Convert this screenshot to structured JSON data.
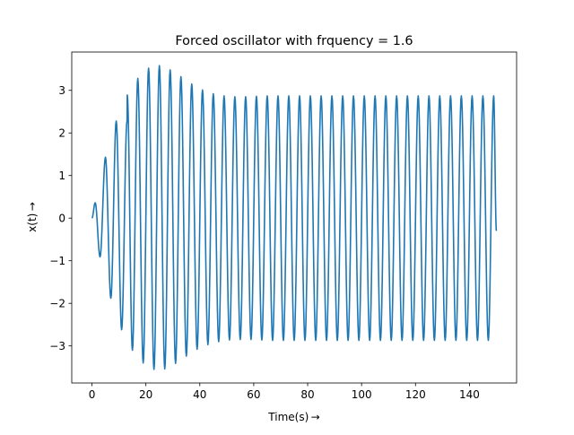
{
  "chart_data": {
    "type": "line",
    "title": "Forced oscillator with frquency = 1.6",
    "xlabel": "Time(s) →",
    "ylabel": "x(t) →",
    "xlim": [
      -7.5,
      157.5
    ],
    "ylim": [
      -3.87,
      3.9
    ],
    "xticks": [
      0,
      20,
      40,
      60,
      80,
      100,
      120,
      140
    ],
    "yticks": [
      -3,
      -2,
      -1,
      0,
      1,
      2,
      3
    ],
    "tick_labels": {
      "x": [
        "0",
        "20",
        "40",
        "60",
        "80",
        "100",
        "120",
        "140"
      ],
      "y": [
        "−3",
        "−2",
        "−1",
        "0",
        "1",
        "2",
        "3"
      ]
    },
    "grid": false,
    "legend": "none",
    "series": [
      {
        "color": "#1f77b4",
        "forcing_frequency": 1.6,
        "peaks": [
          {
            "x": 1.2,
            "y": 0.36
          },
          {
            "x": 5.0,
            "y": 1.43
          },
          {
            "x": 9.0,
            "y": 2.28
          },
          {
            "x": 13.1,
            "y": 2.89
          },
          {
            "x": 17.0,
            "y": 3.28
          },
          {
            "x": 21.0,
            "y": 3.52
          },
          {
            "x": 25.0,
            "y": 3.58
          },
          {
            "x": 29.0,
            "y": 3.48
          },
          {
            "x": 33.0,
            "y": 3.32
          },
          {
            "x": 37.0,
            "y": 3.15
          },
          {
            "x": 41.0,
            "y": 3.01
          },
          {
            "x": 45.0,
            "y": 2.92
          },
          {
            "x": 49.0,
            "y": 2.87
          },
          {
            "x": 53.0,
            "y": 2.85
          },
          {
            "x": 57.0,
            "y": 2.85
          },
          {
            "x": 61.0,
            "y": 2.86
          },
          {
            "x": 65.0,
            "y": 2.87
          },
          {
            "x": 69.0,
            "y": 2.87
          },
          {
            "x": 73.0,
            "y": 2.87
          },
          {
            "x": 77.0,
            "y": 2.87
          },
          {
            "x": 149.0,
            "y": 2.87
          }
        ],
        "troughs": [
          {
            "x": 3.0,
            "y": -0.91
          },
          {
            "x": 7.0,
            "y": -1.88
          },
          {
            "x": 11.0,
            "y": -2.62
          },
          {
            "x": 15.0,
            "y": -3.1
          },
          {
            "x": 19.0,
            "y": -3.4
          },
          {
            "x": 23.0,
            "y": -3.55
          },
          {
            "x": 27.0,
            "y": -3.54
          },
          {
            "x": 31.0,
            "y": -3.41
          },
          {
            "x": 35.0,
            "y": -3.24
          },
          {
            "x": 39.0,
            "y": -3.08
          },
          {
            "x": 43.0,
            "y": -2.97
          },
          {
            "x": 47.0,
            "y": -2.9
          },
          {
            "x": 51.0,
            "y": -2.86
          },
          {
            "x": 55.0,
            "y": -2.85
          },
          {
            "x": 59.0,
            "y": -2.85
          },
          {
            "x": 63.0,
            "y": -2.86
          },
          {
            "x": 67.0,
            "y": -2.87
          },
          {
            "x": 71.0,
            "y": -2.87
          },
          {
            "x": 75.0,
            "y": -2.87
          },
          {
            "x": 147.0,
            "y": -2.87
          }
        ],
        "start": {
          "x": 0,
          "y": 0
        },
        "end": {
          "x": 150,
          "y": -0.3
        }
      }
    ]
  }
}
